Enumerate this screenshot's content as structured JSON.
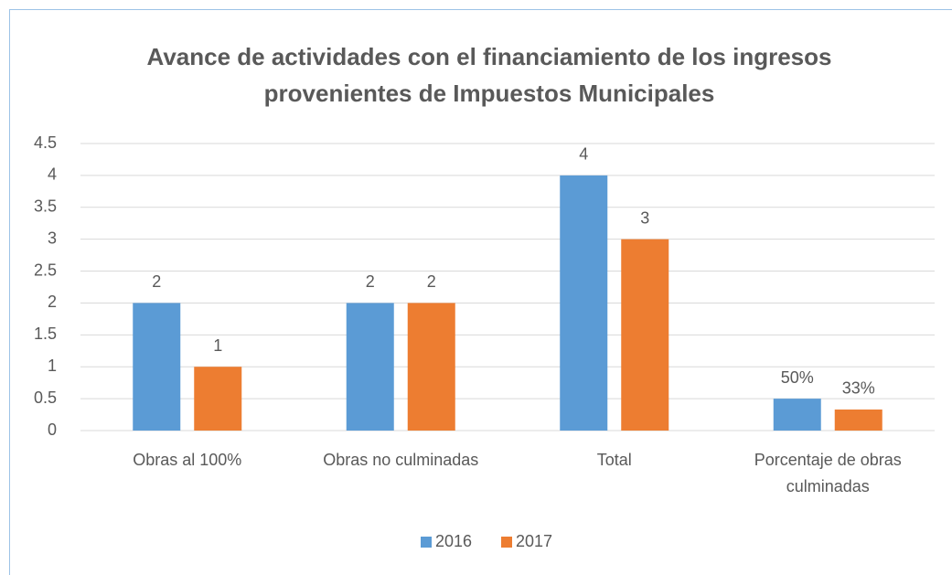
{
  "chart_data": {
    "type": "bar",
    "title": "Avance de actividades con el financiamiento de los ingresos provenientes de Impuestos Municipales",
    "categories": [
      "Obras al 100%",
      "Obras no culminadas",
      "Total",
      "Porcentaje de obras culminadas"
    ],
    "series": [
      {
        "name": "2016",
        "color": "#5b9bd5",
        "values": [
          2,
          2,
          4,
          0.5
        ],
        "value_labels": [
          "2",
          "2",
          "4",
          "50%"
        ]
      },
      {
        "name": "2017",
        "color": "#ed7d31",
        "values": [
          1,
          2,
          3,
          0.33
        ],
        "value_labels": [
          "1",
          "2",
          "3",
          "33%"
        ]
      }
    ],
    "ylim": [
      0,
      4.5
    ],
    "yticks": [
      0,
      0.5,
      1,
      1.5,
      2,
      2.5,
      3,
      3.5,
      4,
      4.5
    ],
    "grid": true,
    "legend": "bottom"
  }
}
